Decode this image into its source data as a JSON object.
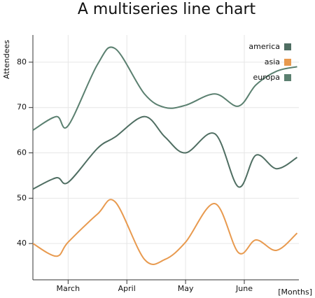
{
  "chart_data": {
    "type": "line",
    "title": "A multiseries line chart",
    "y_label": "Attendees",
    "x_label": "[Months]",
    "x": [
      2.4,
      2.8,
      3.0,
      3.5,
      3.8,
      4.3,
      4.65,
      5.0,
      5.5,
      5.9,
      6.2,
      6.55,
      6.9
    ],
    "series": [
      {
        "name": "america",
        "color": "#4f6e62",
        "values": [
          52,
          54.5,
          53.5,
          61,
          63.5,
          68,
          63.5,
          60,
          64.2,
          52.5,
          59.5,
          56.5,
          59
        ]
      },
      {
        "name": "asia",
        "color": "#e89a4f",
        "values": [
          40,
          37.2,
          40.3,
          46.5,
          49.2,
          36.5,
          36.5,
          40.3,
          48.8,
          38,
          40.8,
          38.5,
          42.3
        ]
      },
      {
        "name": "europa",
        "color": "#5b8070",
        "values": [
          65,
          68,
          66,
          79.5,
          83,
          73,
          70,
          70.5,
          73,
          70.3,
          75,
          78,
          79
        ]
      }
    ],
    "xlim": [
      2.4,
      6.93
    ],
    "xticks": [
      {
        "value": 3,
        "label": "March"
      },
      {
        "value": 4,
        "label": "April"
      },
      {
        "value": 5,
        "label": "May"
      },
      {
        "value": 6,
        "label": "June"
      }
    ],
    "ylim": [
      32,
      86
    ],
    "yticks": [
      40,
      50,
      60,
      70,
      80
    ],
    "grid": true,
    "legend": "top-right"
  }
}
